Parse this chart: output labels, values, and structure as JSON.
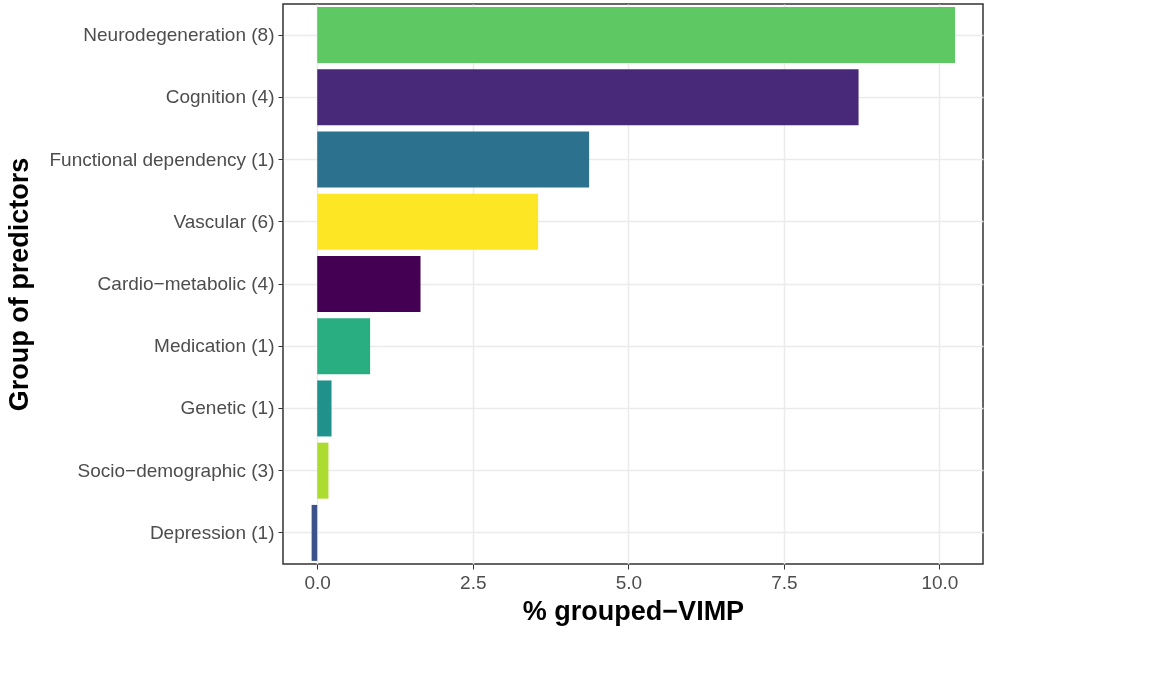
{
  "chart_data": {
    "type": "bar",
    "orientation": "horizontal",
    "xlabel": "% grouped−VIMP",
    "ylabel": "Group of predictors",
    "categories": [
      "Neurodegeneration (8)",
      "Cognition (4)",
      "Functional dependency (1)",
      "Vascular (6)",
      "Cardio−metabolic (4)",
      "Medication (1)",
      "Genetic (1)",
      "Socio−demographic (3)",
      "Depression (1)"
    ],
    "values": [
      10.25,
      8.7,
      4.37,
      3.55,
      1.66,
      0.85,
      0.23,
      0.18,
      -0.09
    ],
    "colors": [
      "#5ec962",
      "#482878",
      "#2c728e",
      "#fde725",
      "#440154",
      "#28ae80",
      "#21918c",
      "#addc30",
      "#3b528b"
    ],
    "xlim": [
      -0.55,
      10.7
    ],
    "xticks": [
      {
        "value": 0,
        "label": "0.0"
      },
      2.5,
      {
        "value": 5,
        "label": "5.0"
      },
      7.5,
      {
        "value": 10,
        "label": "10.0"
      }
    ],
    "grid": true,
    "legend": false
  }
}
